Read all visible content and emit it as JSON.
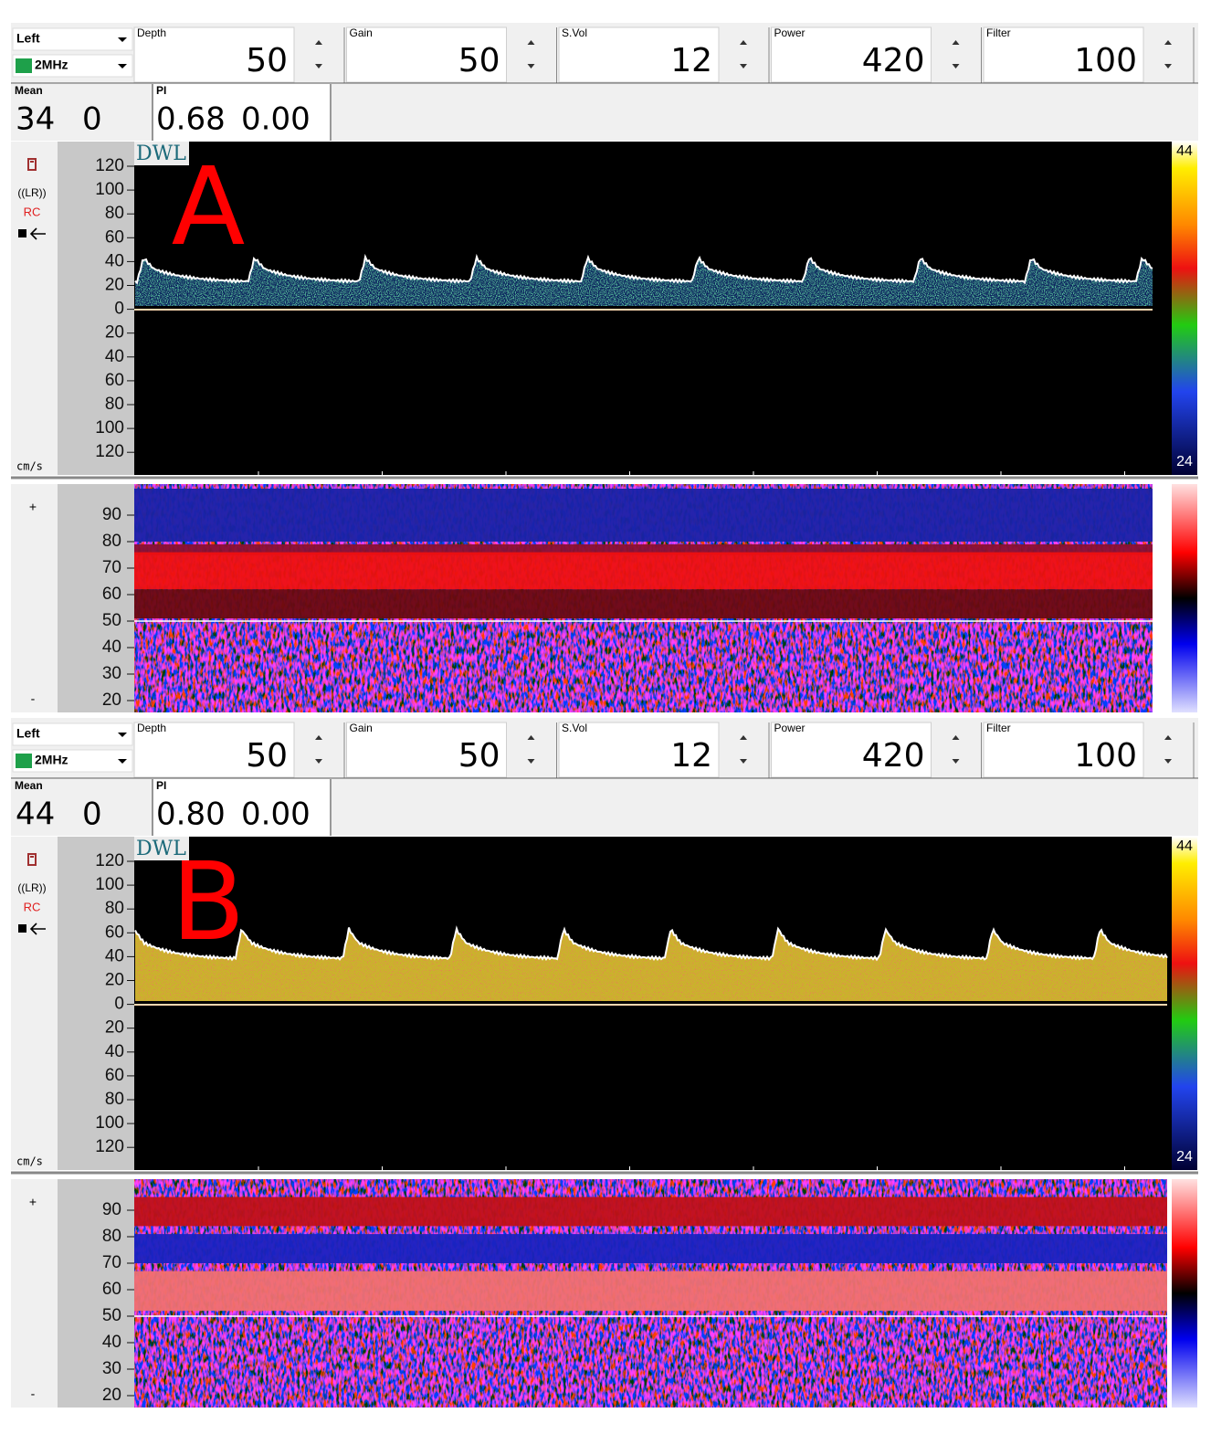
{
  "panels": [
    {
      "label": "A",
      "side": "Left",
      "probe": "2MHz",
      "fields": [
        {
          "name": "Depth",
          "value": "50"
        },
        {
          "name": "Gain",
          "value": "50"
        },
        {
          "name": "S.Vol",
          "value": "12"
        },
        {
          "name": "Power",
          "value": "420"
        },
        {
          "name": "Filter",
          "value": "100"
        }
      ],
      "mean": {
        "title": "Mean",
        "values": [
          "34",
          "0"
        ]
      },
      "pi": {
        "title": "PI",
        "values": [
          "0.68",
          "0.00"
        ]
      },
      "logo": "DWL",
      "spectrum": {
        "ticks": [
          "120",
          "100",
          "80",
          "60",
          "40",
          "20",
          "0",
          "20",
          "40",
          "60",
          "80",
          "100",
          "120"
        ],
        "unit": "cm/s",
        "scale_top": "44",
        "scale_bottom": "24",
        "icons": [
          "((LR))",
          "RC"
        ]
      },
      "mmode": {
        "ticks": [
          "90",
          "80",
          "70",
          "60",
          "50",
          "40",
          "30",
          "20"
        ],
        "plus": "+",
        "minus": "-"
      }
    },
    {
      "label": "B",
      "side": "Left",
      "probe": "2MHz",
      "fields": [
        {
          "name": "Depth",
          "value": "50"
        },
        {
          "name": "Gain",
          "value": "50"
        },
        {
          "name": "S.Vol",
          "value": "12"
        },
        {
          "name": "Power",
          "value": "420"
        },
        {
          "name": "Filter",
          "value": "100"
        }
      ],
      "mean": {
        "title": "Mean",
        "values": [
          "44",
          "0"
        ]
      },
      "pi": {
        "title": "PI",
        "values": [
          "0.80",
          "0.00"
        ]
      },
      "logo": "DWL",
      "spectrum": {
        "ticks": [
          "120",
          "100",
          "80",
          "60",
          "40",
          "20",
          "0",
          "20",
          "40",
          "60",
          "80",
          "100",
          "120"
        ],
        "unit": "cm/s",
        "scale_top": "44",
        "scale_bottom": "24",
        "icons": [
          "((LR))",
          "RC"
        ]
      },
      "mmode": {
        "ticks": [
          "90",
          "80",
          "70",
          "60",
          "50",
          "40",
          "30",
          "20"
        ],
        "plus": "+",
        "minus": "-"
      }
    }
  ]
}
